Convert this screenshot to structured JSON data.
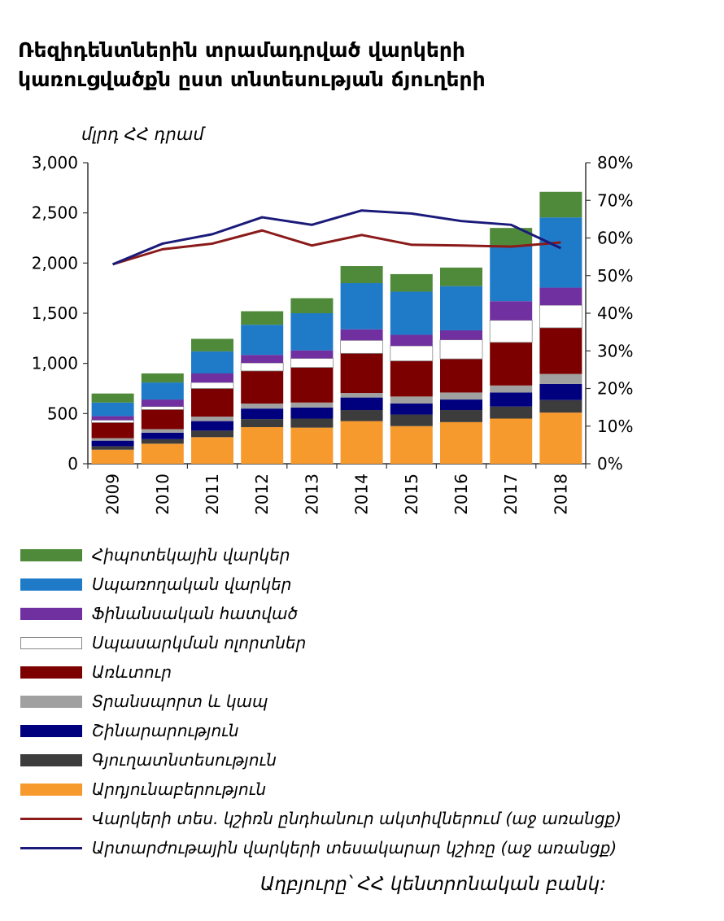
{
  "title": {
    "line1": "Ռեզիդենտներին տրամադրված վարկերի",
    "line2": "կառուցվածքն ըստ տնտեսության ճյուղերի"
  },
  "unit_label": "մլրդ ՀՀ դրամ",
  "source": "Աղբյուրը՝ ՀՀ կենտրոնական բանկ:",
  "chart_data": {
    "type": "bar",
    "stacked": true,
    "categories": [
      "2009",
      "2010",
      "2011",
      "2012",
      "2013",
      "2014",
      "2015",
      "2016",
      "2017",
      "2018"
    ],
    "left_axis": {
      "min": 0,
      "max": 3000,
      "ticks": [
        "0",
        "500",
        "1,000",
        "1,500",
        "2,000",
        "2,500",
        "3,000"
      ]
    },
    "right_axis": {
      "min": 0,
      "max": 80,
      "ticks": [
        "0%",
        "10%",
        "20%",
        "30%",
        "40%",
        "50%",
        "60%",
        "70%",
        "80%"
      ]
    },
    "series": [
      {
        "name": "Արդյունաբերություն",
        "color": "#f79a2e",
        "values": [
          140,
          200,
          265,
          365,
          360,
          425,
          375,
          415,
          450,
          510
        ]
      },
      {
        "name": "Գյուղատնտեսություն",
        "color": "#3c3c3c",
        "values": [
          35,
          45,
          65,
          80,
          90,
          110,
          115,
          120,
          120,
          125
        ]
      },
      {
        "name": "Շինարարություն",
        "color": "#00007f",
        "values": [
          55,
          65,
          95,
          105,
          110,
          125,
          110,
          105,
          140,
          160
        ]
      },
      {
        "name": "Տրանսպորտ և կապ",
        "color": "#a0a0a0",
        "values": [
          25,
          35,
          45,
          50,
          50,
          45,
          70,
          70,
          70,
          100
        ]
      },
      {
        "name": "Առևտուր",
        "color": "#7d0000",
        "values": [
          155,
          195,
          280,
          325,
          350,
          395,
          355,
          335,
          430,
          460
        ]
      },
      {
        "name": "Սպասարկման ոլորտներ",
        "color": "#ffffff",
        "values": [
          25,
          30,
          60,
          80,
          90,
          130,
          150,
          190,
          220,
          225
        ]
      },
      {
        "name": "Ֆինանսական հատված",
        "color": "#7030a0",
        "values": [
          40,
          70,
          90,
          80,
          80,
          110,
          110,
          95,
          190,
          175
        ]
      },
      {
        "name": "Սպառողական վարկեր",
        "color": "#1f7bc8",
        "values": [
          135,
          170,
          220,
          300,
          370,
          460,
          430,
          440,
          550,
          700
        ]
      },
      {
        "name": "Հիպոտեկային վարկեր",
        "color": "#4f8a3a",
        "values": [
          90,
          90,
          125,
          135,
          150,
          170,
          175,
          185,
          180,
          255
        ]
      }
    ],
    "lines": [
      {
        "name": "Վարկերի տես. կշիռն ընդհանուր ակտիվներում (աջ առանցք)",
        "color": "#8b1a1a",
        "axis": "right",
        "values": [
          53,
          57,
          58.5,
          62,
          58,
          60.8,
          58.2,
          58,
          57.7,
          58.8
        ]
      },
      {
        "name": "Արտարժութային վարկերի տեսակարար կշիռը (աջ առանցք)",
        "color": "#1a1a7a",
        "axis": "right",
        "values": [
          53,
          58.5,
          61,
          65.5,
          63.5,
          67.3,
          66.5,
          64.5,
          63.5,
          57.3
        ]
      }
    ]
  }
}
